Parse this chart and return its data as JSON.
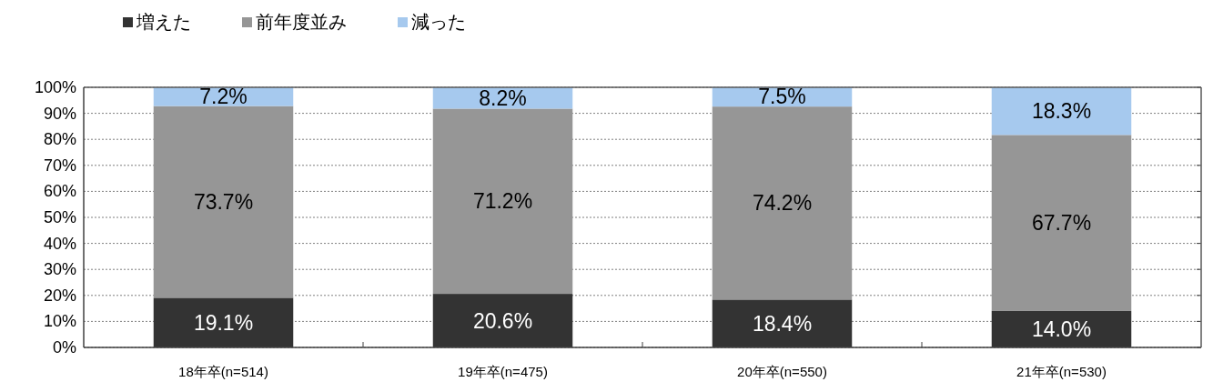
{
  "chart_data": {
    "type": "bar",
    "stacked": true,
    "categories": [
      "18年卒(n=514)",
      "19年卒(n=475)",
      "20年卒(n=550)",
      "21年卒(n=530)"
    ],
    "series": [
      {
        "name": "増えた",
        "color": "#333333",
        "values": [
          19.1,
          20.6,
          18.4,
          14.0
        ],
        "value_labels": [
          "19.1%",
          "20.6%",
          "18.4%",
          "14.0%"
        ]
      },
      {
        "name": "前年度並み",
        "color": "#969696",
        "values": [
          73.7,
          71.2,
          74.2,
          67.7
        ],
        "value_labels": [
          "73.7%",
          "71.2%",
          "74.2%",
          "67.7%"
        ]
      },
      {
        "name": "減った",
        "color": "#a6c9ee",
        "values": [
          7.2,
          8.2,
          7.5,
          18.3
        ],
        "value_labels": [
          "7.2%",
          "8.2%",
          "7.5%",
          "18.3%"
        ]
      }
    ],
    "ylim": [
      0,
      100
    ],
    "yticks": [
      {
        "value": 0,
        "label": "0%"
      },
      {
        "value": 10,
        "label": "10%"
      },
      {
        "value": 20,
        "label": "20%"
      },
      {
        "value": 30,
        "label": "30%"
      },
      {
        "value": 40,
        "label": "40%"
      },
      {
        "value": 50,
        "label": "50%"
      },
      {
        "value": 60,
        "label": "60%"
      },
      {
        "value": 70,
        "label": "70%"
      },
      {
        "value": 80,
        "label": "80%"
      },
      {
        "value": 90,
        "label": "90%"
      },
      {
        "value": 100,
        "label": "100%"
      }
    ],
    "grid": "y",
    "legend": "top left"
  }
}
